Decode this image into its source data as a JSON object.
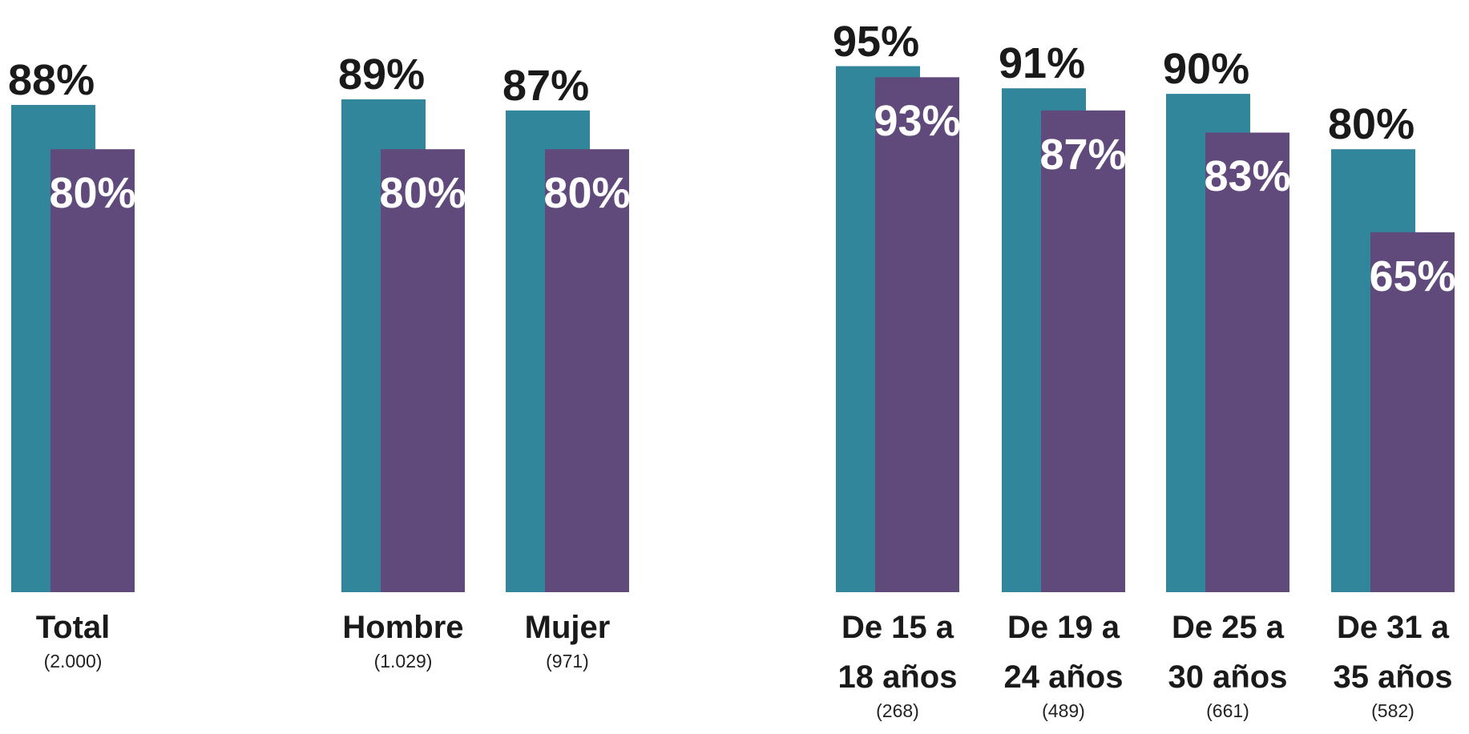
{
  "chart_data": {
    "type": "bar",
    "categories": [
      "Total",
      "Hombre",
      "Mujer",
      "De 15 a 18 años",
      "De 19 a 24 años",
      "De 25 a 30 años",
      "De 31 a 35 años"
    ],
    "sample_sizes": [
      "(2.000)",
      "(1.029)",
      "(971)",
      "(268)",
      "(489)",
      "(661)",
      "(582)"
    ],
    "series": [
      {
        "color": "#31869b",
        "values": [
          88,
          89,
          87,
          95,
          91,
          90,
          80
        ],
        "value_labels": [
          "88%",
          "89%",
          "87%",
          "95%",
          "91%",
          "90%",
          "80%"
        ]
      },
      {
        "color": "#604a7b",
        "values": [
          80,
          80,
          80,
          93,
          87,
          83,
          65
        ],
        "value_labels": [
          "80%",
          "80%",
          "80%",
          "93%",
          "87%",
          "83%",
          "65%"
        ]
      }
    ],
    "ylim": [
      0,
      100
    ]
  }
}
